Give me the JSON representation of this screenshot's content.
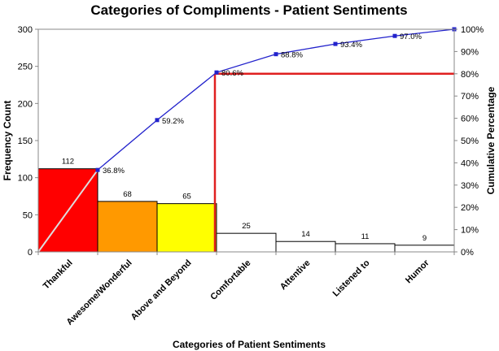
{
  "chart_data": {
    "type": "bar",
    "title": "Categories of Compliments - Patient Sentiments",
    "xlabel": "Categories of Patient Sentiments",
    "ylabel": "Frequency Count",
    "y2label": "Cumulative Percentage",
    "categories": [
      "Thankful",
      "Awesome/Wonderful",
      "Above and Beyond",
      "Comfortable",
      "Attentive",
      "Listened to",
      "Humor"
    ],
    "series": [
      {
        "type": "bar",
        "values": [
          112,
          68,
          65,
          25,
          14,
          11,
          9
        ],
        "labels": [
          "112",
          "68",
          "65",
          "25",
          "14",
          "11",
          "9"
        ],
        "colors": [
          "#ff0000",
          "#ff9900",
          "#ffff00",
          "#ffffff",
          "#ffffff",
          "#ffffff",
          "#ffffff"
        ]
      },
      {
        "type": "line",
        "axis": "secondary",
        "values": [
          36.8,
          59.2,
          80.6,
          88.8,
          93.4,
          97.0,
          100
        ],
        "labels": [
          "36.8%",
          "59.2%",
          "80.6%",
          "88.8%",
          "93.4%",
          "97.0%",
          ""
        ],
        "color": "#2222cc"
      }
    ],
    "ylim": [
      0,
      300
    ],
    "yticks": [
      "0",
      "50",
      "100",
      "150",
      "200",
      "250",
      "300"
    ],
    "y2lim": [
      0,
      100
    ],
    "y2ticks": [
      "0%",
      "10%",
      "20%",
      "30%",
      "40%",
      "50%",
      "60%",
      "70%",
      "80%",
      "90%",
      "100%"
    ],
    "cutoff_percent": 80,
    "cutoff_color": "#e02020",
    "diagonal_color": "#dddddd",
    "grid": false,
    "legend": "none"
  }
}
